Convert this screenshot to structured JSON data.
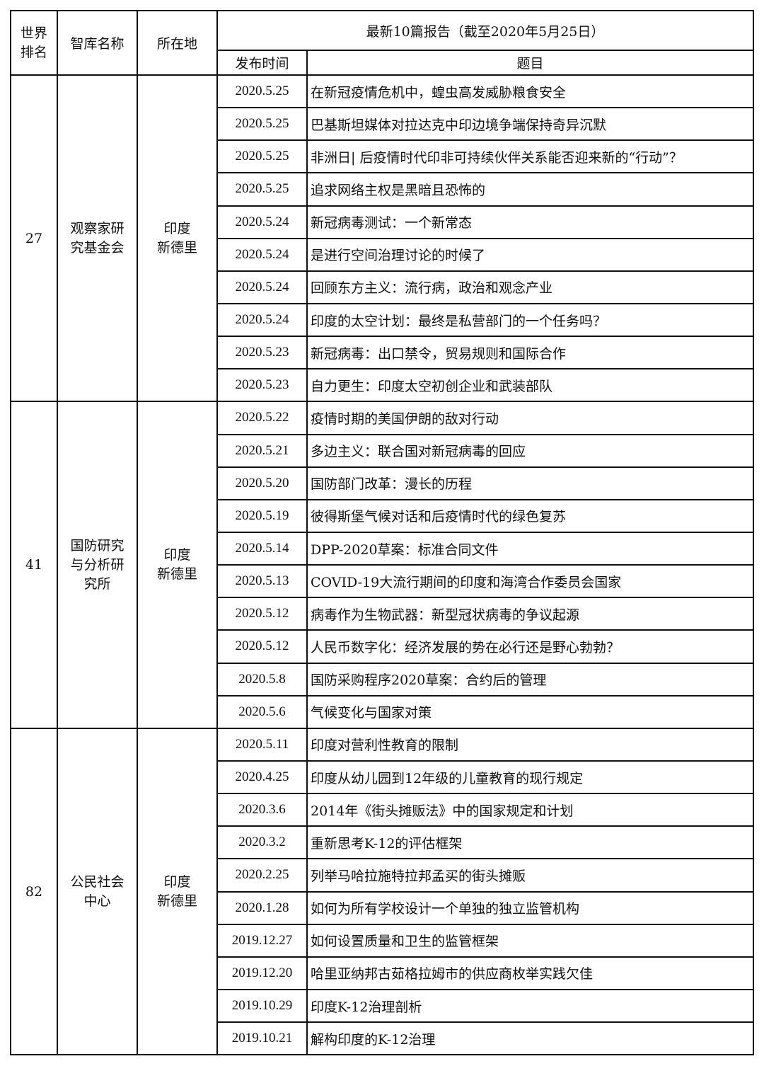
{
  "header": {
    "rank": "世界排名",
    "rank_lines": [
      "世界",
      "排名"
    ],
    "name": "智库名称",
    "location": "所在地",
    "reports": "最新10篇报告（截至2020年5月25日）",
    "date": "发布时间",
    "title": "题目"
  },
  "groups": [
    {
      "rank": "27",
      "name_lines": [
        "观察家研",
        "究基金会"
      ],
      "location_lines": [
        "印度",
        "新德里"
      ],
      "reports": [
        {
          "date": "2020.5.25",
          "title": "在新冠疫情危机中，蝗虫高发威胁粮食安全"
        },
        {
          "date": "2020.5.25",
          "title": "巴基斯坦媒体对拉达克中印边境争端保持奇异沉默"
        },
        {
          "date": "2020.5.25",
          "title": "非洲日| 后疫情时代印非可持续伙伴关系能否迎来新的“行动”？"
        },
        {
          "date": "2020.5.25",
          "title": "追求网络主权是黑暗且恐怖的"
        },
        {
          "date": "2020.5.24",
          "title": "新冠病毒测试：一个新常态"
        },
        {
          "date": "2020.5.24",
          "title": "是进行空间治理讨论的时候了"
        },
        {
          "date": "2020.5.24",
          "title": "回顾东方主义：流行病，政治和观念产业"
        },
        {
          "date": "2020.5.24",
          "title": "印度的太空计划：最终是私营部门的一个任务吗？"
        },
        {
          "date": "2020.5.23",
          "title": "新冠病毒：出口禁令，贸易规则和国际合作"
        },
        {
          "date": "2020.5.23",
          "title": "自力更生：印度太空初创企业和武装部队"
        }
      ]
    },
    {
      "rank": "41",
      "name_lines": [
        "国防研究",
        "与分析研",
        "究所"
      ],
      "location_lines": [
        "印度",
        "新德里"
      ],
      "reports": [
        {
          "date": "2020.5.22",
          "title": "疫情时期的美国伊朗的敌对行动"
        },
        {
          "date": "2020.5.21",
          "title": "多边主义：联合国对新冠病毒的回应"
        },
        {
          "date": "2020.5.20",
          "title": "国防部门改革：漫长的历程"
        },
        {
          "date": "2020.5.19",
          "title": "彼得斯堡气候对话和后疫情时代的绿色复苏"
        },
        {
          "date": "2020.5.14",
          "title": "DPP-2020草案：标准合同文件"
        },
        {
          "date": "2020.5.13",
          "title": "COVID-19大流行期间的印度和海湾合作委员会国家"
        },
        {
          "date": "2020.5.12",
          "title": "病毒作为生物武器：新型冠状病毒的争议起源"
        },
        {
          "date": "2020.5.12",
          "title": "人民币数字化：经济发展的势在必行还是野心勃勃？"
        },
        {
          "date": "2020.5.8",
          "title": "国防采购程序2020草案：合约后的管理"
        },
        {
          "date": "2020.5.6",
          "title": "气候变化与国家对策"
        }
      ]
    },
    {
      "rank": "82",
      "name_lines": [
        "公民社会",
        "中心"
      ],
      "location_lines": [
        "印度",
        "新德里"
      ],
      "reports": [
        {
          "date": "2020.5.11",
          "title": "印度对营利性教育的限制"
        },
        {
          "date": "2020.4.25",
          "title": "印度从幼儿园到12年级的儿童教育的现行规定"
        },
        {
          "date": "2020.3.6",
          "title": "2014年《街头摊贩法》中的国家规定和计划"
        },
        {
          "date": "2020.3.2",
          "title": "重新思考K-12的评估框架"
        },
        {
          "date": "2020.2.25",
          "title": "列举马哈拉施特拉邦孟买的街头摊贩"
        },
        {
          "date": "2020.1.28",
          "title": "如何为所有学校设计一个单独的独立监管机构"
        },
        {
          "date": "2019.12.27",
          "title": "如何设置质量和卫生的监管框架"
        },
        {
          "date": "2019.12.20",
          "title": "哈里亚纳邦古茹格拉姆市的供应商枚举实践欠佳"
        },
        {
          "date": "2019.10.29",
          "title": "印度K-12治理剖析"
        },
        {
          "date": "2019.10.21",
          "title": "解构印度的K-12治理"
        }
      ]
    }
  ]
}
